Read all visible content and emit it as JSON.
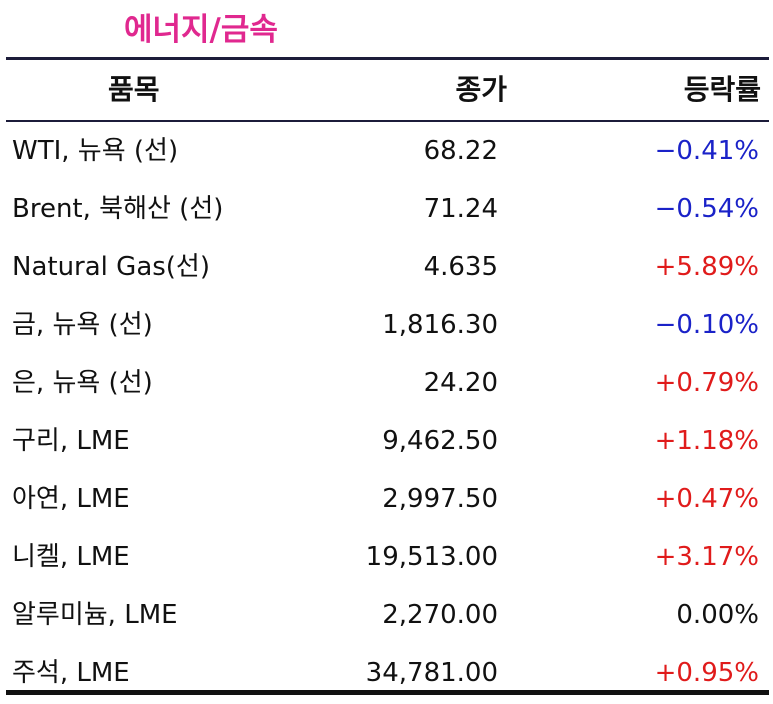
{
  "section_title": "에너지/금속",
  "headers": {
    "item": "품목",
    "close": "종가",
    "change": "등락률"
  },
  "rows": [
    {
      "name": "WTI, 뉴욕 (선)",
      "close": "68.22",
      "change": "−0.41%",
      "direction": "neg"
    },
    {
      "name": "Brent, 북해산 (선)",
      "close": "71.24",
      "change": "−0.54%",
      "direction": "neg"
    },
    {
      "name": "Natural Gas(선)",
      "close": "4.635",
      "change": "+5.89%",
      "direction": "pos"
    },
    {
      "name": "금, 뉴욕  (선)",
      "close": "1,816.30",
      "change": "−0.10%",
      "direction": "neg"
    },
    {
      "name": "은, 뉴욕  (선)",
      "close": "24.20",
      "change": "+0.79%",
      "direction": "pos"
    },
    {
      "name": "구리, LME",
      "close": "9,462.50",
      "change": "+1.18%",
      "direction": "pos"
    },
    {
      "name": "아연, LME",
      "close": "2,997.50",
      "change": "+0.47%",
      "direction": "pos"
    },
    {
      "name": "니켈, LME",
      "close": "19,513.00",
      "change": "+3.17%",
      "direction": "pos"
    },
    {
      "name": "알루미늄, LME",
      "close": "2,270.00",
      "change": "0.00%",
      "direction": "flat"
    },
    {
      "name": "주석, LME",
      "close": "34,781.00",
      "change": "+0.95%",
      "direction": "pos"
    }
  ],
  "colors": {
    "title": "#e0288f",
    "negative": "#1a22c8",
    "positive": "#e01b1b",
    "rule": "#1c1c3a"
  }
}
